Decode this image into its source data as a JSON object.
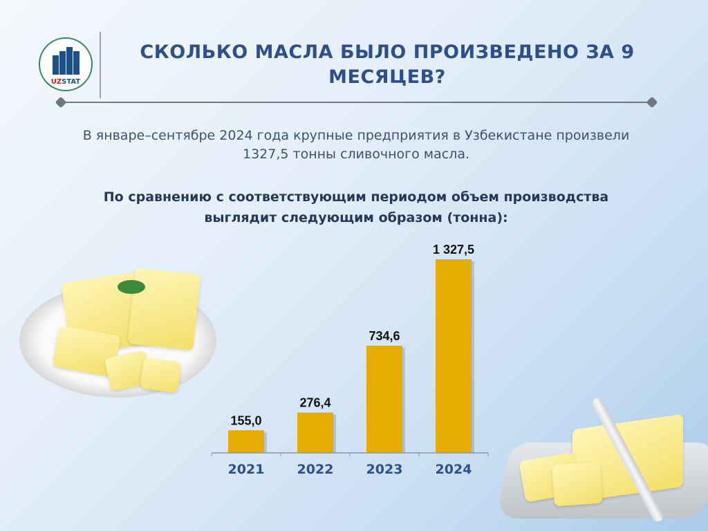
{
  "logo": {
    "text_uz": "UZ",
    "text_stat": "STAT"
  },
  "header": {
    "title": "СКОЛЬКО МАСЛА БЫЛО ПРОИЗВЕДЕНО ЗА 9 МЕСЯЦЕВ?"
  },
  "lead": "В январе–сентябре 2024 года крупные предприятия в Узбекистане произвели 1327,5 тонны сливочного масла.",
  "subtitle": "По сравнению с соответствующим периодом объем производства выглядит следующим образом (тонна):",
  "colors": {
    "bar": "#e6ad00",
    "title": "#2f4f8c",
    "tick": "#2f4f8c"
  },
  "chart_data": {
    "type": "bar",
    "title": "",
    "xlabel": "",
    "ylabel": "тонна",
    "categories": [
      "2021",
      "2022",
      "2023",
      "2024"
    ],
    "values": [
      155.0,
      276.4,
      734.6,
      1327.5
    ],
    "labels": [
      "155,0",
      "276,4",
      "734,6",
      "1 327,5"
    ],
    "ylim": [
      0,
      1327.5
    ],
    "grid": false
  }
}
